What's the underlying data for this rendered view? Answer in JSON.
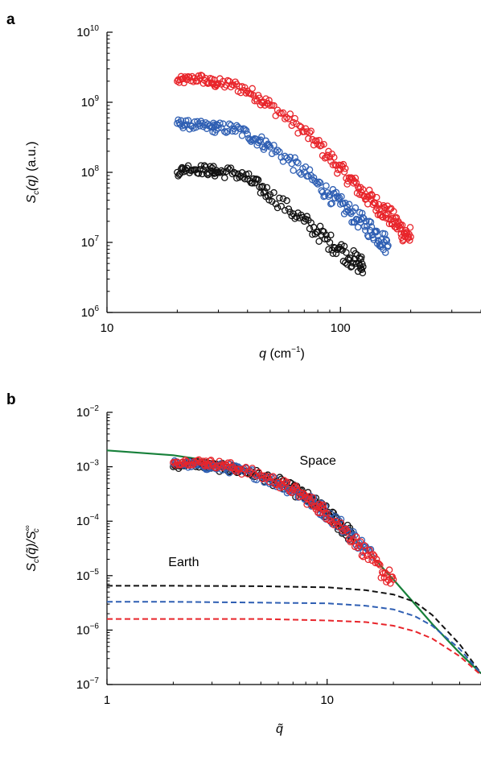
{
  "chart_data": [
    {
      "panel": "a",
      "type": "scatter",
      "xscale": "log",
      "yscale": "log",
      "xlim": [
        10,
        400
      ],
      "ylim": [
        1000000,
        10000000000
      ],
      "xticks": [
        {
          "v": 10,
          "base": "10",
          "exp": ""
        },
        {
          "v": 100,
          "base": "100",
          "exp": ""
        }
      ],
      "yticks": [
        {
          "v": 1000000,
          "base": "10",
          "exp": "6"
        },
        {
          "v": 10000000,
          "base": "10",
          "exp": "7"
        },
        {
          "v": 100000000,
          "base": "10",
          "exp": "8"
        },
        {
          "v": 1000000000,
          "base": "10",
          "exp": "9"
        },
        {
          "v": 10000000000,
          "base": "10",
          "exp": "10"
        }
      ],
      "xlabel": {
        "var": "q",
        "unit": "(cm",
        "exp": "−1",
        "close": ")"
      },
      "ylabel": {
        "var": "S",
        "sub": "c",
        "arg": "(q)",
        "unit": " (a.u.)"
      },
      "series": [
        {
          "color": "#e8252b",
          "marker": "open-circle",
          "x": [
            20,
            22,
            25,
            28,
            30,
            35,
            40,
            45,
            50,
            60,
            70,
            80,
            90,
            100,
            110,
            120,
            130,
            140,
            150,
            160,
            170,
            180,
            190,
            200
          ],
          "y": [
            2000000000,
            2100000000,
            2200000000,
            1900000000,
            1850000000,
            1750000000,
            1450000000,
            1150000000,
            900000000,
            580000000,
            380000000,
            250000000,
            165000000,
            110000000,
            80000000,
            58000000,
            45000000,
            37000000,
            30000000,
            25000000,
            20000000,
            16000000,
            13000000,
            12000000
          ]
        },
        {
          "color": "#2f5fb3",
          "marker": "open-circle",
          "x": [
            20,
            22,
            25,
            28,
            30,
            35,
            40,
            45,
            50,
            60,
            70,
            80,
            90,
            100,
            110,
            120,
            130,
            140,
            150,
            160
          ],
          "y": [
            500000000,
            480000000,
            460000000,
            440000000,
            430000000,
            420000000,
            350000000,
            280000000,
            230000000,
            150000000,
            100000000,
            68000000,
            48000000,
            35000000,
            27000000,
            21000000,
            17000000,
            14000000,
            11000000,
            9000000
          ]
        },
        {
          "color": "#111111",
          "marker": "open-circle",
          "x": [
            20,
            22,
            25,
            28,
            30,
            35,
            40,
            45,
            50,
            60,
            70,
            80,
            90,
            100,
            110,
            120,
            125
          ],
          "y": [
            100000000,
            115000000,
            110000000,
            105000000,
            100000000,
            100000000,
            80000000,
            62000000,
            48000000,
            30000000,
            20000000,
            14000000,
            10000000,
            8000000,
            6000000,
            5000000,
            4500000
          ]
        }
      ]
    },
    {
      "panel": "b",
      "type": "line",
      "xscale": "log",
      "yscale": "log",
      "xlim": [
        1,
        50
      ],
      "ylim": [
        1e-07,
        0.01
      ],
      "xticks": [
        {
          "v": 1,
          "base": "1",
          "exp": ""
        },
        {
          "v": 10,
          "base": "10",
          "exp": ""
        }
      ],
      "yticks": [
        {
          "v": 1e-07,
          "base": "10",
          "exp": "−7"
        },
        {
          "v": 1e-06,
          "base": "10",
          "exp": "−6"
        },
        {
          "v": 1e-05,
          "base": "10",
          "exp": "−5"
        },
        {
          "v": 0.0001,
          "base": "10",
          "exp": "−4"
        },
        {
          "v": 0.001,
          "base": "10",
          "exp": "−3"
        },
        {
          "v": 0.01,
          "base": "10",
          "exp": "−2"
        }
      ],
      "xlabel": {
        "var": "q̃"
      },
      "ylabel": {
        "var": "S",
        "sub": "c",
        "arg": "(q̃)/S",
        "sub2": "c",
        "sup2": "∞"
      },
      "annotations": [
        {
          "text": "Space",
          "x": 7.5,
          "y": 0.0011
        },
        {
          "text": "Earth",
          "x": 1.9,
          "y": 1.5e-05
        }
      ],
      "series": [
        {
          "kind": "line",
          "style": "solid",
          "color": "#17803a",
          "x": [
            1,
            2,
            3,
            4,
            5,
            7,
            10,
            15,
            20,
            30,
            40,
            50
          ],
          "y": [
            0.002,
            0.00163,
            0.00127,
            0.00095,
            0.00069,
            0.00037,
            0.00013,
            3e-05,
            8.5e-06,
            1.3e-06,
            3.8e-07,
            1.6e-07
          ]
        },
        {
          "kind": "line",
          "style": "dashed",
          "color": "#111111",
          "x": [
            1,
            2,
            5,
            10,
            15,
            20,
            25,
            30,
            40,
            50
          ],
          "y": [
            6.5e-06,
            6.5e-06,
            6.4e-06,
            6.1e-06,
            5.4e-06,
            4.5e-06,
            3.3e-06,
            1.9e-06,
            5.5e-07,
            1.6e-07
          ]
        },
        {
          "kind": "line",
          "style": "dashed",
          "color": "#2f5fb3",
          "x": [
            1,
            2,
            5,
            10,
            15,
            20,
            25,
            30,
            40,
            50
          ],
          "y": [
            3.3e-06,
            3.3e-06,
            3.2e-06,
            3.1e-06,
            2.8e-06,
            2.4e-06,
            1.8e-06,
            1.2e-06,
            4.5e-07,
            1.6e-07
          ]
        },
        {
          "kind": "line",
          "style": "dashed",
          "color": "#e8252b",
          "x": [
            1,
            2,
            5,
            10,
            15,
            20,
            25,
            30,
            40,
            50
          ],
          "y": [
            1.6e-06,
            1.6e-06,
            1.6e-06,
            1.5e-06,
            1.4e-06,
            1.2e-06,
            9.5e-07,
            7e-07,
            3.3e-07,
            1.5e-07
          ]
        },
        {
          "kind": "scatter",
          "color": "#111111",
          "marker": "open-circle",
          "x": [
            2,
            2.3,
            2.7,
            3,
            3.5,
            4,
            5,
            6,
            7,
            8,
            9,
            10,
            11,
            12,
            13
          ],
          "y": [
            0.001,
            0.00115,
            0.0011,
            0.001,
            0.00095,
            0.00085,
            0.00068,
            0.00052,
            0.00038,
            0.00028,
            0.0002,
            0.00014,
            0.0001,
            7e-05,
            5.5e-05
          ]
        },
        {
          "kind": "scatter",
          "color": "#2f5fb3",
          "marker": "open-circle",
          "x": [
            2,
            2.3,
            2.7,
            3,
            3.5,
            4,
            5,
            6,
            7,
            8,
            9,
            10,
            12,
            14,
            16
          ],
          "y": [
            0.00115,
            0.0011,
            0.00105,
            0.001,
            0.00095,
            0.00085,
            0.00068,
            0.0005,
            0.00037,
            0.00027,
            0.00019,
            0.00014,
            7.5e-05,
            4e-05,
            2.2e-05
          ]
        },
        {
          "kind": "scatter",
          "color": "#e8252b",
          "marker": "open-circle",
          "x": [
            2,
            2.3,
            2.7,
            3,
            3.5,
            4,
            5,
            6,
            7,
            8,
            9,
            10,
            12,
            14,
            16,
            18,
            20
          ],
          "y": [
            0.0012,
            0.00125,
            0.0012,
            0.00115,
            0.00105,
            0.0009,
            0.0007,
            0.00052,
            0.00038,
            0.00027,
            0.00019,
            0.00014,
            7e-05,
            3.6e-05,
            1.9e-05,
            1.1e-05,
            8.5e-06
          ]
        }
      ]
    }
  ],
  "labels": {
    "panel_a": "a",
    "panel_b": "b"
  }
}
